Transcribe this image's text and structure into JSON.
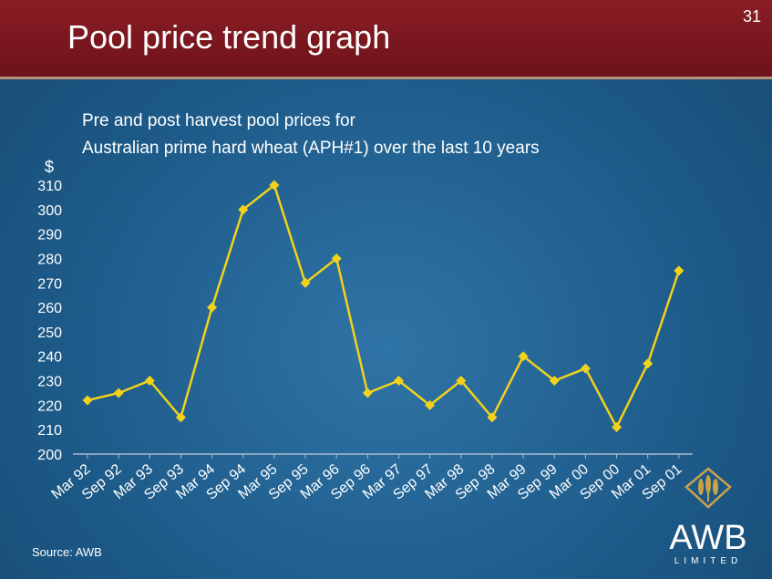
{
  "slide": {
    "title": "Pool price trend graph",
    "number": "31",
    "subtitle_line1": "Pre and post harvest pool prices for",
    "subtitle_line2": "Australian prime hard wheat (APH#1) over the last 10 years",
    "source": "Source: AWB"
  },
  "logo": {
    "text": "AWB",
    "subtext": "LIMITED",
    "icon": "wheat-sheaf-icon",
    "color": "#c9a24a"
  },
  "colors": {
    "title_bar": "#7a161d",
    "background": "#1f5a86",
    "series_line": "#f2d21a",
    "axis": "#a8bcd0"
  },
  "chart_data": {
    "type": "line",
    "title": "",
    "ylabel": "$",
    "xlabel": "",
    "ylim": [
      200,
      310
    ],
    "yticks": [
      200,
      210,
      220,
      230,
      240,
      250,
      260,
      270,
      280,
      290,
      300,
      310
    ],
    "grid": false,
    "categories": [
      "Mar 92",
      "Sep 92",
      "Mar 93",
      "Sep 93",
      "Mar 94",
      "Sep 94",
      "Mar 95",
      "Sep 95",
      "Mar 96",
      "Sep 96",
      "Mar 97",
      "Sep 97",
      "Mar 98",
      "Sep 98",
      "Mar 99",
      "Sep 99",
      "Mar 00",
      "Sep 00",
      "Mar 01",
      "Sep 01"
    ],
    "series": [
      {
        "values": [
          222,
          225,
          230,
          215,
          260,
          300,
          310,
          270,
          280,
          225,
          230,
          220,
          230,
          215,
          240,
          230,
          235,
          211,
          237,
          275
        ]
      }
    ]
  }
}
